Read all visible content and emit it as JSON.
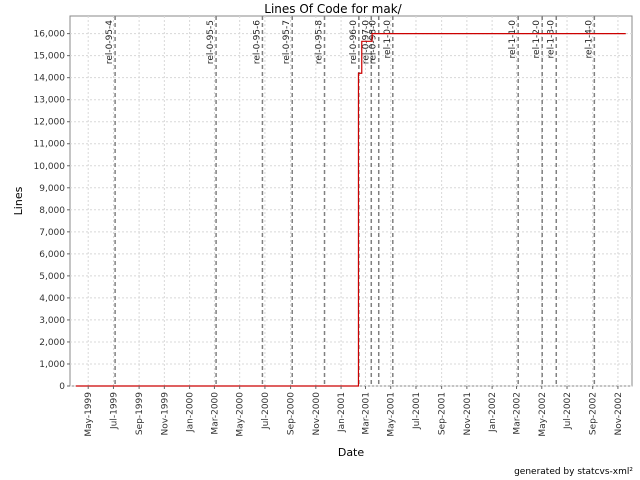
{
  "chart_data": {
    "type": "line",
    "title": "Lines Of Code for mak/",
    "xlabel": "Date",
    "ylabel": "Lines",
    "xlim": [
      "1999-03-18",
      "2002-12-05"
    ],
    "ylim": [
      0,
      16800
    ],
    "y_ticks": [
      0,
      1000,
      2000,
      3000,
      4000,
      5000,
      6000,
      7000,
      8000,
      9000,
      10000,
      11000,
      12000,
      13000,
      14000,
      15000,
      16000
    ],
    "y_tick_labels": [
      "0",
      "1,000",
      "2,000",
      "3,000",
      "4,000",
      "5,000",
      "6,000",
      "7,000",
      "8,000",
      "9,000",
      "10,000",
      "11,000",
      "12,000",
      "13,000",
      "14,000",
      "15,000",
      "16,000"
    ],
    "x_ticks": [
      "1999-05-01",
      "1999-07-01",
      "1999-09-01",
      "1999-11-01",
      "2000-01-01",
      "2000-03-01",
      "2000-05-01",
      "2000-07-01",
      "2000-09-01",
      "2000-11-01",
      "2001-01-01",
      "2001-03-01",
      "2001-05-01",
      "2001-07-01",
      "2001-09-01",
      "2001-11-01",
      "2002-01-01",
      "2002-03-01",
      "2002-05-01",
      "2002-07-01",
      "2002-09-01",
      "2002-11-01"
    ],
    "x_tick_labels": [
      "May-1999",
      "Jul-1999",
      "Sep-1999",
      "Nov-1999",
      "Jan-2000",
      "Mar-2000",
      "May-2000",
      "Jul-2000",
      "Sep-2000",
      "Nov-2000",
      "Jan-2001",
      "Mar-2001",
      "May-2001",
      "Jul-2001",
      "Sep-2001",
      "Nov-2001",
      "Jan-2002",
      "Mar-2002",
      "May-2002",
      "Jul-2002",
      "Sep-2002",
      "Nov-2002"
    ],
    "grid": true,
    "series": [
      {
        "color": "#cc0000",
        "step": true,
        "points": [
          {
            "x": "1999-04-01",
            "y": 0
          },
          {
            "x": "2001-02-12",
            "y": 0
          },
          {
            "x": "2001-02-12",
            "y": 14200
          },
          {
            "x": "2001-02-20",
            "y": 14200
          },
          {
            "x": "2001-02-20",
            "y": 15650
          },
          {
            "x": "2001-03-17",
            "y": 15650
          },
          {
            "x": "2001-03-17",
            "y": 16000
          },
          {
            "x": "2002-11-20",
            "y": 16000
          }
        ]
      }
    ],
    "release_markers": [
      {
        "label": "rel-0-95-4",
        "x": "1999-07-05"
      },
      {
        "label": "rel-0-95-5",
        "x": "2000-03-05"
      },
      {
        "label": "rel-0-95-6",
        "x": "2000-06-25"
      },
      {
        "label": "rel-0-95-7",
        "x": "2000-09-05"
      },
      {
        "label": "rel-0-95-8",
        "x": "2000-11-22"
      },
      {
        "label": "rel-0-96-0",
        "x": "2001-02-13"
      },
      {
        "label": "rel-0-97-0",
        "x": "2001-03-15"
      },
      {
        "label": "rel-0-98-0",
        "x": "2001-04-02"
      },
      {
        "label": "rel-1-0-0",
        "x": "2001-05-06"
      },
      {
        "label": "rel-1-1-0",
        "x": "2002-03-05"
      },
      {
        "label": "rel-1-2-0",
        "x": "2002-05-02"
      },
      {
        "label": "rel-1-3-0",
        "x": "2002-06-05"
      },
      {
        "label": "rel-1-4-0",
        "x": "2002-09-05"
      }
    ],
    "marker_color": "#808080",
    "footer": "generated by statcvs-xml²"
  }
}
